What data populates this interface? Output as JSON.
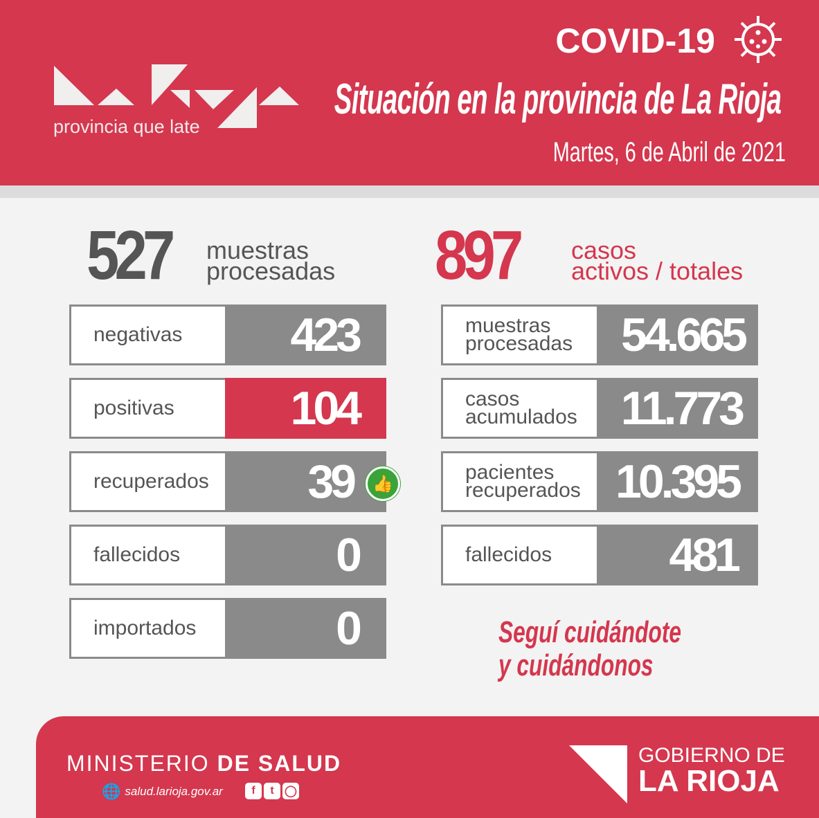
{
  "header": {
    "logo_tagline": "provincia que late",
    "covid_label": "COVID-19",
    "title": "Situación en la provincia de La Rioja",
    "date": "Martes, 6 de Abril de 2021",
    "accent": "#d4374e"
  },
  "left": {
    "big_number": "527",
    "big_label_1": "muestras",
    "big_label_2": "procesadas",
    "rows": [
      {
        "label": "negativas",
        "value": "423"
      },
      {
        "label": "positivas",
        "value": "104"
      },
      {
        "label": "recuperados",
        "value": "39"
      },
      {
        "label": "fallecidos",
        "value": "0"
      },
      {
        "label": "importados",
        "value": "0"
      }
    ]
  },
  "right": {
    "big_number": "897",
    "big_label_1": "casos",
    "big_label_2": "activos / totales",
    "rows": [
      {
        "label_1": "muestras",
        "label_2": "procesadas",
        "value": "54.665"
      },
      {
        "label_1": "casos",
        "label_2": "acumulados",
        "value": "11.773"
      },
      {
        "label_1": "pacientes",
        "label_2": "recuperados",
        "value": "10.395"
      },
      {
        "label_1": "fallecidos",
        "label_2": "",
        "value": "481"
      }
    ]
  },
  "slogan": {
    "line1": "Seguí cuidándote",
    "line2": "y cuidándonos"
  },
  "footer": {
    "ministry_light": "MINISTERIO",
    "ministry_bold": "DE SALUD",
    "website": "salud.larioja.gov.ar",
    "gob_line1": "GOBIERNO DE",
    "gob_line2": "LA RIOJA"
  }
}
